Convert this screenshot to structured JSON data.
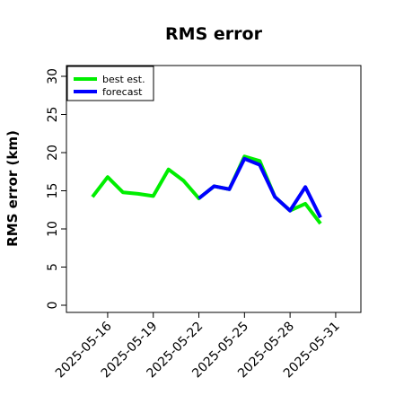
{
  "chart_data": {
    "type": "line",
    "title": "RMS error",
    "xlabel": "",
    "ylabel": "RMS error (km)",
    "ylim": [
      0,
      30
    ],
    "yticks": [
      0,
      5,
      10,
      15,
      20,
      25,
      30
    ],
    "xticks": [
      "2025-05-16",
      "2025-05-19",
      "2025-05-22",
      "2025-05-25",
      "2025-05-28",
      "2025-05-31"
    ],
    "highlight_tick": "2025-05-22",
    "highlight_color": "#228B22",
    "legend": "top-left",
    "grid": false,
    "x": [
      "2025-05-15",
      "2025-05-16",
      "2025-05-17",
      "2025-05-18",
      "2025-05-19",
      "2025-05-20",
      "2025-05-21",
      "2025-05-22",
      "2025-05-23",
      "2025-05-24",
      "2025-05-25",
      "2025-05-26",
      "2025-05-27",
      "2025-05-28",
      "2025-05-29",
      "2025-05-30"
    ],
    "series": [
      {
        "name": "best est.",
        "color": "#00ee00",
        "values": [
          14.2,
          16.8,
          14.8,
          14.6,
          14.3,
          17.8,
          16.3,
          14.0,
          15.6,
          15.2,
          19.5,
          18.9,
          14.2,
          12.4,
          13.3,
          10.7
        ]
      },
      {
        "name": "forecast",
        "color": "#0000ff",
        "values": [
          null,
          null,
          null,
          null,
          null,
          null,
          null,
          14.0,
          15.6,
          15.2,
          19.2,
          18.4,
          14.2,
          12.4,
          15.5,
          11.5
        ]
      }
    ]
  }
}
